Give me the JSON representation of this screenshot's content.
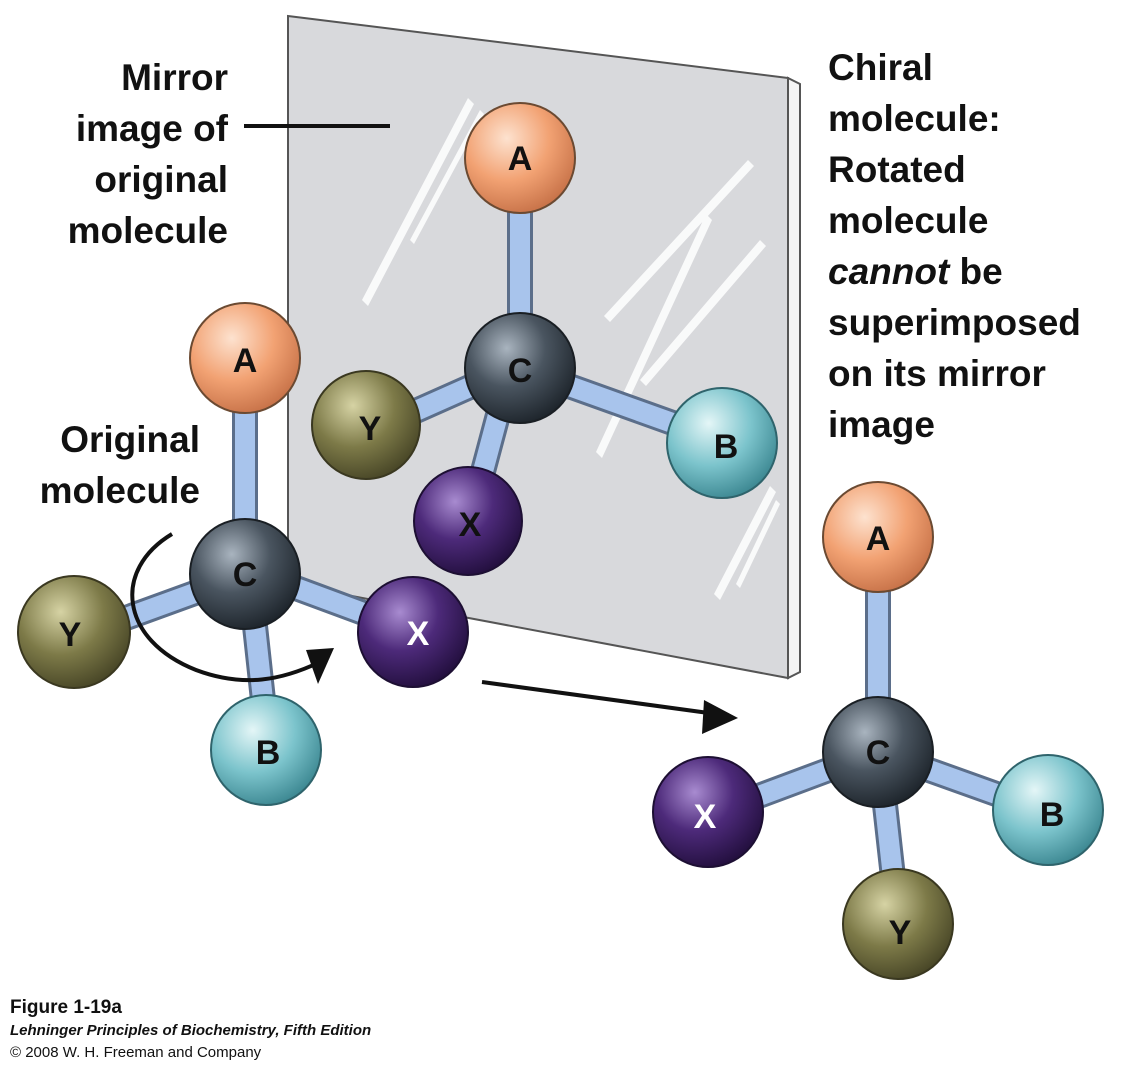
{
  "labels": {
    "mirror_image": [
      "Mirror",
      "image of",
      "original",
      "molecule"
    ],
    "original": [
      "Original",
      "molecule"
    ],
    "chiral": {
      "line1": "Chiral",
      "line2": "molecule:",
      "line3": "Rotated",
      "line4": "molecule",
      "line5_em": "cannot",
      "line5_rest": " be",
      "line6": "superimposed",
      "line7": "on its mirror",
      "line8": "image"
    }
  },
  "atoms": {
    "A": "A",
    "B": "B",
    "C": "C",
    "X": "X",
    "Y": "Y"
  },
  "colors": {
    "atom_A": "#f2a273",
    "atom_B": "#7cc4cc",
    "atom_C": "#4a5560",
    "atom_X": "#4d2a7a",
    "atom_Y": "#7d7a48",
    "bond": "#a8c4ec",
    "mirror": "#d8d9dc"
  },
  "caption": {
    "figure": "Figure 1-19a",
    "book": "Lehninger Principles of Biochemistry, Fifth Edition",
    "copyright": "© 2008 W. H. Freeman and Company"
  }
}
